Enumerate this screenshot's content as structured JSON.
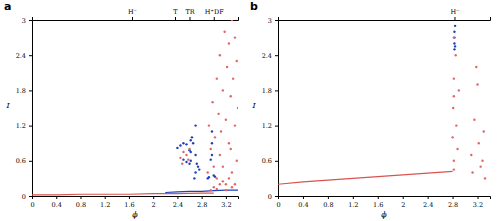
{
  "chart_data": [
    {
      "type": "scatter",
      "title": "a",
      "x_label": "ϕ",
      "y_label": "I",
      "xlim": [
        0,
        3.4
      ],
      "xticks": [
        0,
        0.4,
        0.8,
        1.2,
        1.6,
        2,
        2.4,
        2.8,
        3.2
      ],
      "ylim": [
        0,
        3
      ],
      "yticks": [
        0,
        0.6,
        1.2,
        1.8,
        2.4,
        3
      ],
      "annotations": [
        {
          "text": "H⁻",
          "x": 1.65
        },
        {
          "text": "T",
          "x": 2.36
        },
        {
          "text": "TR",
          "x": 2.6
        },
        {
          "text": "H⁺DF",
          "x": 3.0
        }
      ],
      "series": [
        {
          "type": "line",
          "color": "#d9534f",
          "line_style": "solid",
          "x": [
            0,
            0.4,
            0.8,
            1.2,
            1.6,
            2.0,
            2.4,
            2.8,
            3.0
          ],
          "values": [
            0.02,
            0.02,
            0.03,
            0.03,
            0.03,
            0.04,
            0.04,
            0.05,
            0.05
          ]
        },
        {
          "type": "line",
          "color": "#1f3fbf",
          "line_style": "solid",
          "x": [
            2.2,
            2.4,
            2.6,
            2.8,
            3.0,
            3.2,
            3.4
          ],
          "values": [
            0.06,
            0.07,
            0.08,
            0.08,
            0.09,
            0.1,
            0.1
          ]
        },
        {
          "type": "scatter",
          "color": "#1f3fbf",
          "marker": "circle",
          "x": [
            2.4,
            2.45,
            2.5,
            2.55,
            2.6,
            2.62,
            2.62,
            2.62,
            2.64,
            2.66,
            2.68,
            2.7,
            2.7,
            2.7,
            2.72,
            2.74,
            2.76,
            2.9,
            2.92,
            2.95,
            2.97,
            2.97,
            2.97,
            3.0,
            3.02,
            2.5,
            2.55,
            2.6
          ],
          "values": [
            0.82,
            0.86,
            0.9,
            0.88,
            0.78,
            0.6,
            0.75,
            0.95,
            1.0,
            0.9,
            0.3,
            1.2,
            0.7,
            0.4,
            0.55,
            0.5,
            0.45,
            0.3,
            0.32,
            0.62,
            0.7,
            0.9,
            1.1,
            0.35,
            0.33,
            0.62,
            0.58,
            0.55
          ]
        },
        {
          "type": "scatter",
          "color": "#e06666",
          "marker": "circle",
          "x": [
            2.45,
            2.5,
            2.55,
            2.6,
            2.48,
            2.58,
            2.9,
            2.92,
            2.95,
            2.98,
            3.0,
            3.02,
            3.05,
            3.05,
            3.08,
            3.1,
            3.1,
            3.12,
            3.15,
            3.15,
            3.18,
            3.2,
            3.2,
            3.22,
            3.25,
            3.25,
            3.28,
            3.3,
            3.3,
            3.32,
            3.35,
            3.35,
            3.38,
            3.38,
            3.4,
            3.0,
            3.1,
            3.2,
            3.3,
            3.15,
            3.25,
            3.35,
            2.95,
            3.05,
            3.28
          ],
          "values": [
            0.65,
            0.75,
            0.7,
            0.8,
            0.55,
            0.62,
            0.4,
            1.2,
            0.8,
            1.6,
            0.5,
            1.0,
            2.0,
            0.3,
            1.4,
            0.7,
            2.4,
            1.1,
            0.5,
            1.8,
            2.8,
            1.3,
            0.2,
            2.2,
            0.9,
            2.6,
            1.7,
            0.4,
            3.0,
            2.0,
            1.2,
            2.7,
            0.6,
            2.3,
            1.5,
            0.15,
            0.2,
            0.1,
            0.15,
            0.25,
            0.3,
            0.2,
            0.1,
            0.12,
            0.8
          ]
        }
      ]
    },
    {
      "type": "scatter",
      "title": "b",
      "x_label": "ϕ",
      "y_label": "I",
      "xlim": [
        0,
        3.4
      ],
      "xticks": [
        0,
        0.4,
        0.8,
        1.2,
        1.6,
        2,
        2.4,
        2.8,
        3.2
      ],
      "ylim": [
        0,
        3
      ],
      "yticks": [
        0,
        0.6,
        1.2,
        1.8,
        2.4,
        3
      ],
      "annotations": [
        {
          "text": "H⁻",
          "x": 2.83
        }
      ],
      "series": [
        {
          "type": "line",
          "color": "#d9534f",
          "line_style": "solid",
          "x": [
            0,
            0.4,
            0.8,
            1.2,
            1.6,
            2.0,
            2.4,
            2.8
          ],
          "values": [
            0.2,
            0.24,
            0.27,
            0.3,
            0.33,
            0.36,
            0.39,
            0.42
          ]
        },
        {
          "type": "scatter",
          "color": "#1f3fbf",
          "marker": "circle",
          "x": [
            2.83,
            2.83,
            2.83,
            2.83,
            2.84,
            2.84
          ],
          "values": [
            2.5,
            2.6,
            2.7,
            2.8,
            2.9,
            2.55
          ]
        },
        {
          "type": "scatter",
          "color": "#e06666",
          "marker": "circle",
          "x": [
            2.8,
            2.81,
            2.82,
            2.82,
            2.85,
            2.86,
            2.88,
            2.9,
            3.1,
            3.15,
            3.2,
            3.22,
            3.25,
            3.3,
            3.32,
            3.12,
            3.18,
            3.28,
            2.82,
            2.82,
            2.82
          ],
          "values": [
            1.0,
            1.5,
            0.6,
            2.0,
            2.4,
            1.2,
            0.8,
            1.8,
            0.7,
            1.3,
            1.9,
            0.9,
            0.5,
            1.1,
            0.3,
            0.4,
            2.2,
            0.6,
            0.45,
            1.7,
            2.7
          ]
        }
      ]
    }
  ]
}
